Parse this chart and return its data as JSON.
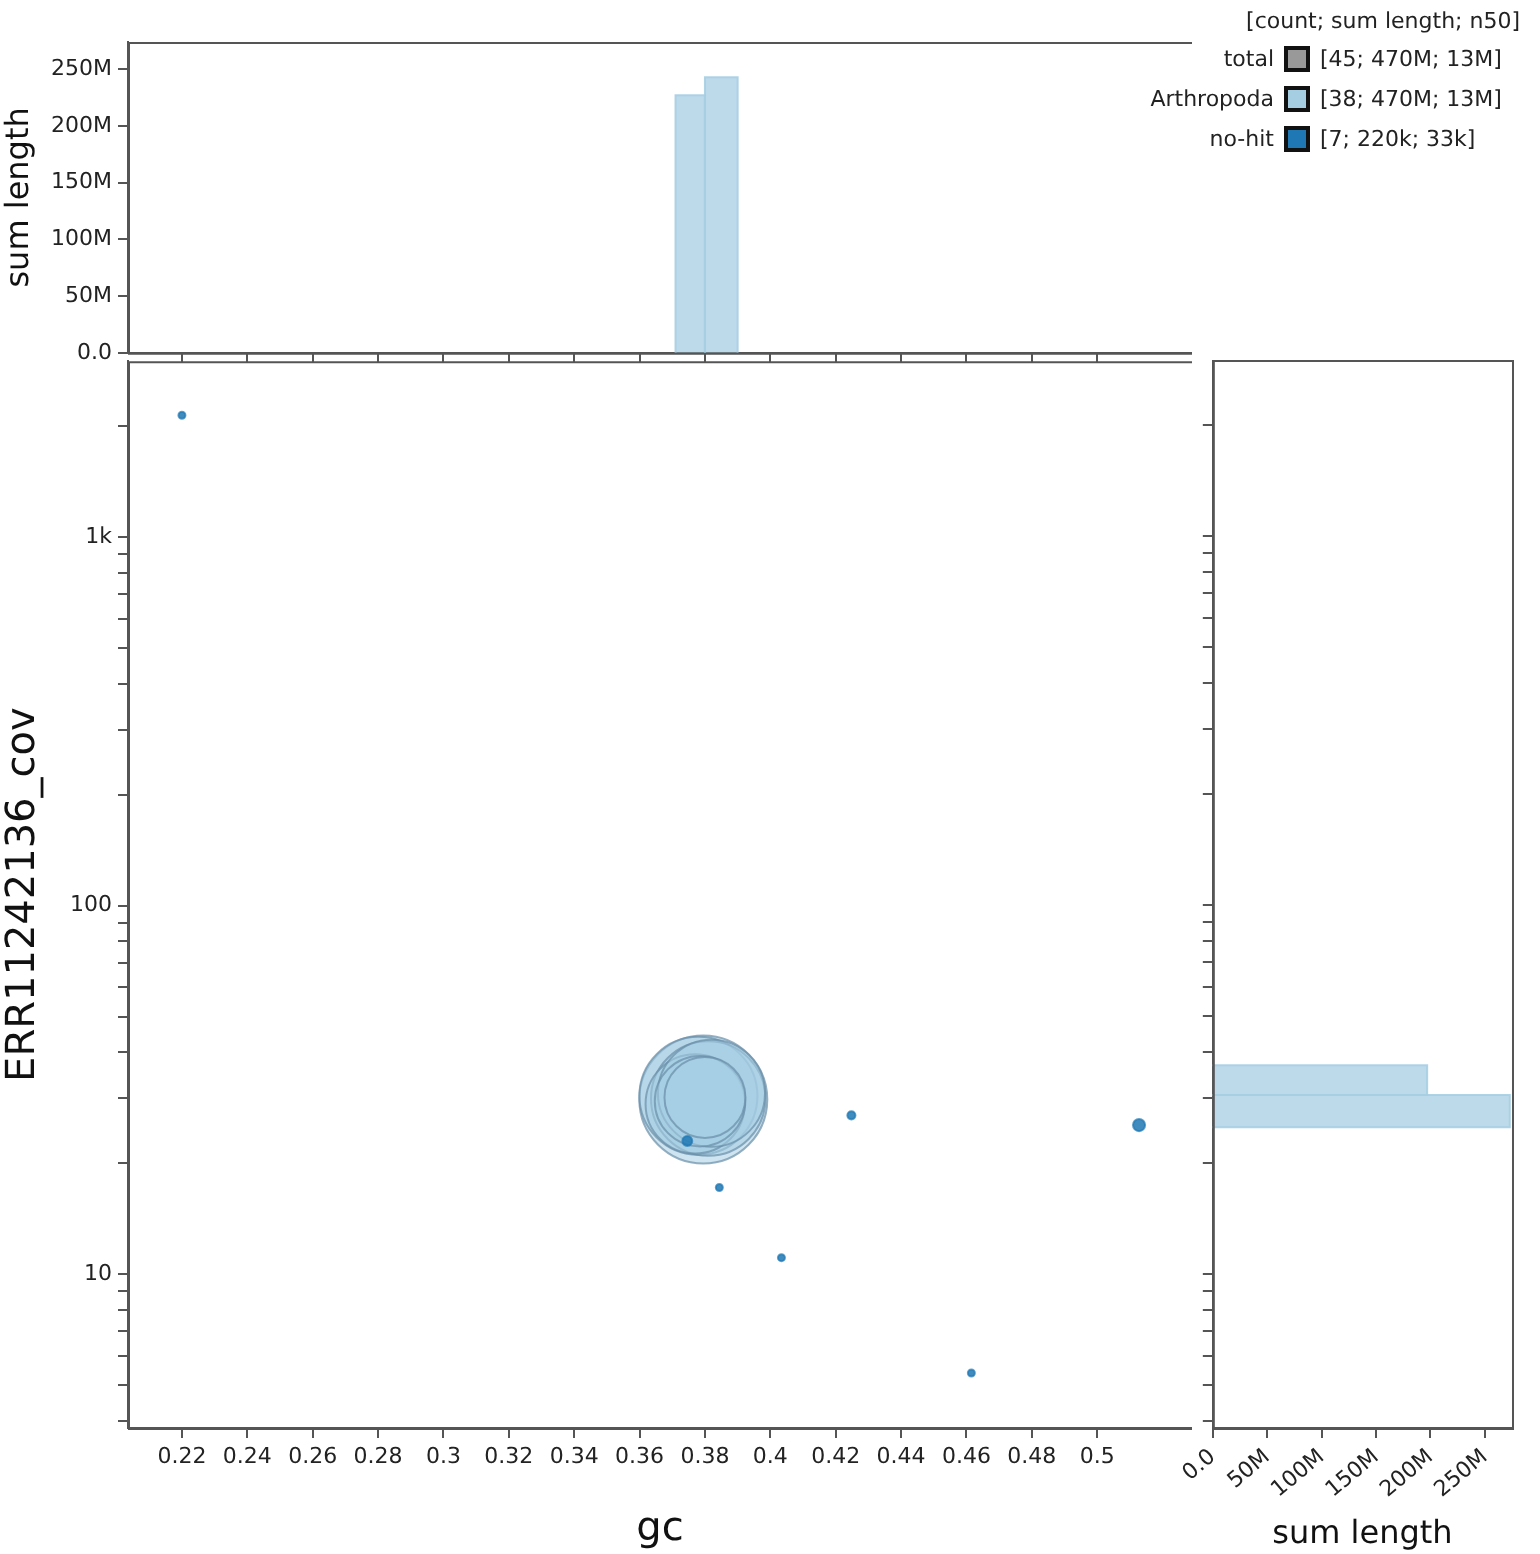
{
  "chart_data": [
    {
      "type": "histogram",
      "ylabel": "sum length",
      "bins": [
        0.371,
        0.38,
        0.39
      ],
      "values": [
        227000000,
        243000000
      ],
      "color": "#a6cee3",
      "xlim": [
        0.2035,
        0.529
      ],
      "xticks": [
        0.22,
        0.24,
        0.26,
        0.28,
        0.3,
        0.32,
        0.34,
        0.36,
        0.38,
        0.4,
        0.42,
        0.44,
        0.46,
        0.48,
        0.5
      ],
      "ylim": [
        0,
        274000000
      ],
      "yticks": [
        {
          "value": 0,
          "label": "0.0"
        },
        {
          "value": 50000000,
          "label": "50M"
        },
        {
          "value": 100000000,
          "label": "100M"
        },
        {
          "value": 150000000,
          "label": "150M"
        },
        {
          "value": 200000000,
          "label": "200M"
        },
        {
          "value": 250000000,
          "label": "250M"
        }
      ],
      "tick_labels": "y"
    },
    {
      "type": "bubble",
      "xlabel": "gc",
      "ylabel": "ERR11242136_cov",
      "log": "y",
      "legend": "top right",
      "legend_title": "[count; sum length; n50]",
      "relative": false,
      "series": [
        {
          "name": "total",
          "color": "#999999"
        },
        {
          "name": "Arthropoda",
          "color": "#a6cee3",
          "x": [
            0.3795,
            0.378,
            0.381,
            0.377,
            0.382,
            0.3785,
            0.38
          ],
          "values": [
            29.8,
            30.5,
            30,
            29,
            31,
            29.5,
            30.2
          ],
          "sizes": [
            1,
            0.85,
            0.8,
            0.6,
            0.7,
            0.5,
            0.4
          ]
        },
        {
          "name": "no-hit",
          "color": "#1f78b4",
          "x": [
            0.22,
            0.3746,
            0.3844,
            0.4034,
            0.4248,
            0.4615,
            0.5128
          ],
          "values": [
            2140,
            23,
            17.2,
            11.1,
            27,
            5.4,
            25.4
          ],
          "sizes": [
            0.003,
            0.006,
            0.003,
            0.003,
            0.004,
            0.003,
            0.009
          ]
        }
      ],
      "annotations": [
        "[45; 470M; 13M]",
        "[38; 470M; 13M]",
        "[7; 220k; 33k]"
      ],
      "xlim": [
        0.2035,
        0.529
      ],
      "xticks": [
        0.22,
        0.24,
        0.26,
        0.28,
        0.3,
        0.32,
        0.34,
        0.36,
        0.38,
        0.4,
        0.42,
        0.44,
        0.46,
        0.48,
        0.5
      ],
      "ylim": [
        3.83,
        3000
      ],
      "yticks": [
        {
          "value": 4,
          "label": null
        },
        {
          "value": 5,
          "label": null
        },
        {
          "value": 6,
          "label": null
        },
        {
          "value": 7,
          "label": null
        },
        {
          "value": 8,
          "label": null
        },
        {
          "value": 9,
          "label": null
        },
        10,
        {
          "value": 20,
          "label": null
        },
        {
          "value": 30,
          "label": null
        },
        {
          "value": 40,
          "label": null
        },
        {
          "value": 50,
          "label": null
        },
        {
          "value": 60,
          "label": null
        },
        {
          "value": 70,
          "label": null
        },
        {
          "value": 80,
          "label": null
        },
        {
          "value": 90,
          "label": null
        },
        100,
        {
          "value": 200,
          "label": null
        },
        {
          "value": 300,
          "label": null
        },
        {
          "value": 400,
          "label": null
        },
        {
          "value": 500,
          "label": null
        },
        {
          "value": 600,
          "label": null
        },
        {
          "value": 700,
          "label": null
        },
        {
          "value": 800,
          "label": null
        },
        {
          "value": 900,
          "label": null
        },
        {
          "value": 1000,
          "label": "1k"
        },
        {
          "value": 2000,
          "label": null
        }
      ]
    },
    {
      "type": "histogram",
      "orientation": "horizontal",
      "xlabel": "sum length",
      "log": "y",
      "bins": [
        25,
        30.6,
        36.8
      ],
      "values": [
        273000000,
        197000000
      ],
      "color": "#a6cee3",
      "xlim": [
        0,
        275000000
      ],
      "xticks": [
        {
          "value": 0,
          "label": "0.0"
        },
        {
          "value": 50000000,
          "label": "50M"
        },
        {
          "value": 100000000,
          "label": "100M"
        },
        {
          "value": 150000000,
          "label": "150M"
        },
        {
          "value": 200000000,
          "label": "200M"
        },
        {
          "value": 250000000,
          "label": "250M"
        }
      ],
      "ylim": [
        3.83,
        3000
      ],
      "yticks": [
        {
          "value": 4,
          "label": null
        },
        {
          "value": 5,
          "label": null
        },
        {
          "value": 6,
          "label": null
        },
        {
          "value": 7,
          "label": null
        },
        {
          "value": 8,
          "label": null
        },
        {
          "value": 9,
          "label": null
        },
        {
          "value": 10,
          "label": null
        },
        {
          "value": 20,
          "label": null
        },
        {
          "value": 30,
          "label": null
        },
        {
          "value": 40,
          "label": null
        },
        {
          "value": 50,
          "label": null
        },
        {
          "value": 60,
          "label": null
        },
        {
          "value": 70,
          "label": null
        },
        {
          "value": 80,
          "label": null
        },
        {
          "value": 90,
          "label": null
        },
        {
          "value": 100,
          "label": null
        },
        {
          "value": 200,
          "label": null
        },
        {
          "value": 300,
          "label": null
        },
        {
          "value": 400,
          "label": null
        },
        {
          "value": 500,
          "label": null
        },
        {
          "value": 600,
          "label": null
        },
        {
          "value": 700,
          "label": null
        },
        {
          "value": 800,
          "label": null
        },
        {
          "value": 900,
          "label": null
        },
        {
          "value": 1000,
          "label": null
        },
        {
          "value": 2000,
          "label": null
        }
      ],
      "tick_labels": "x"
    }
  ]
}
